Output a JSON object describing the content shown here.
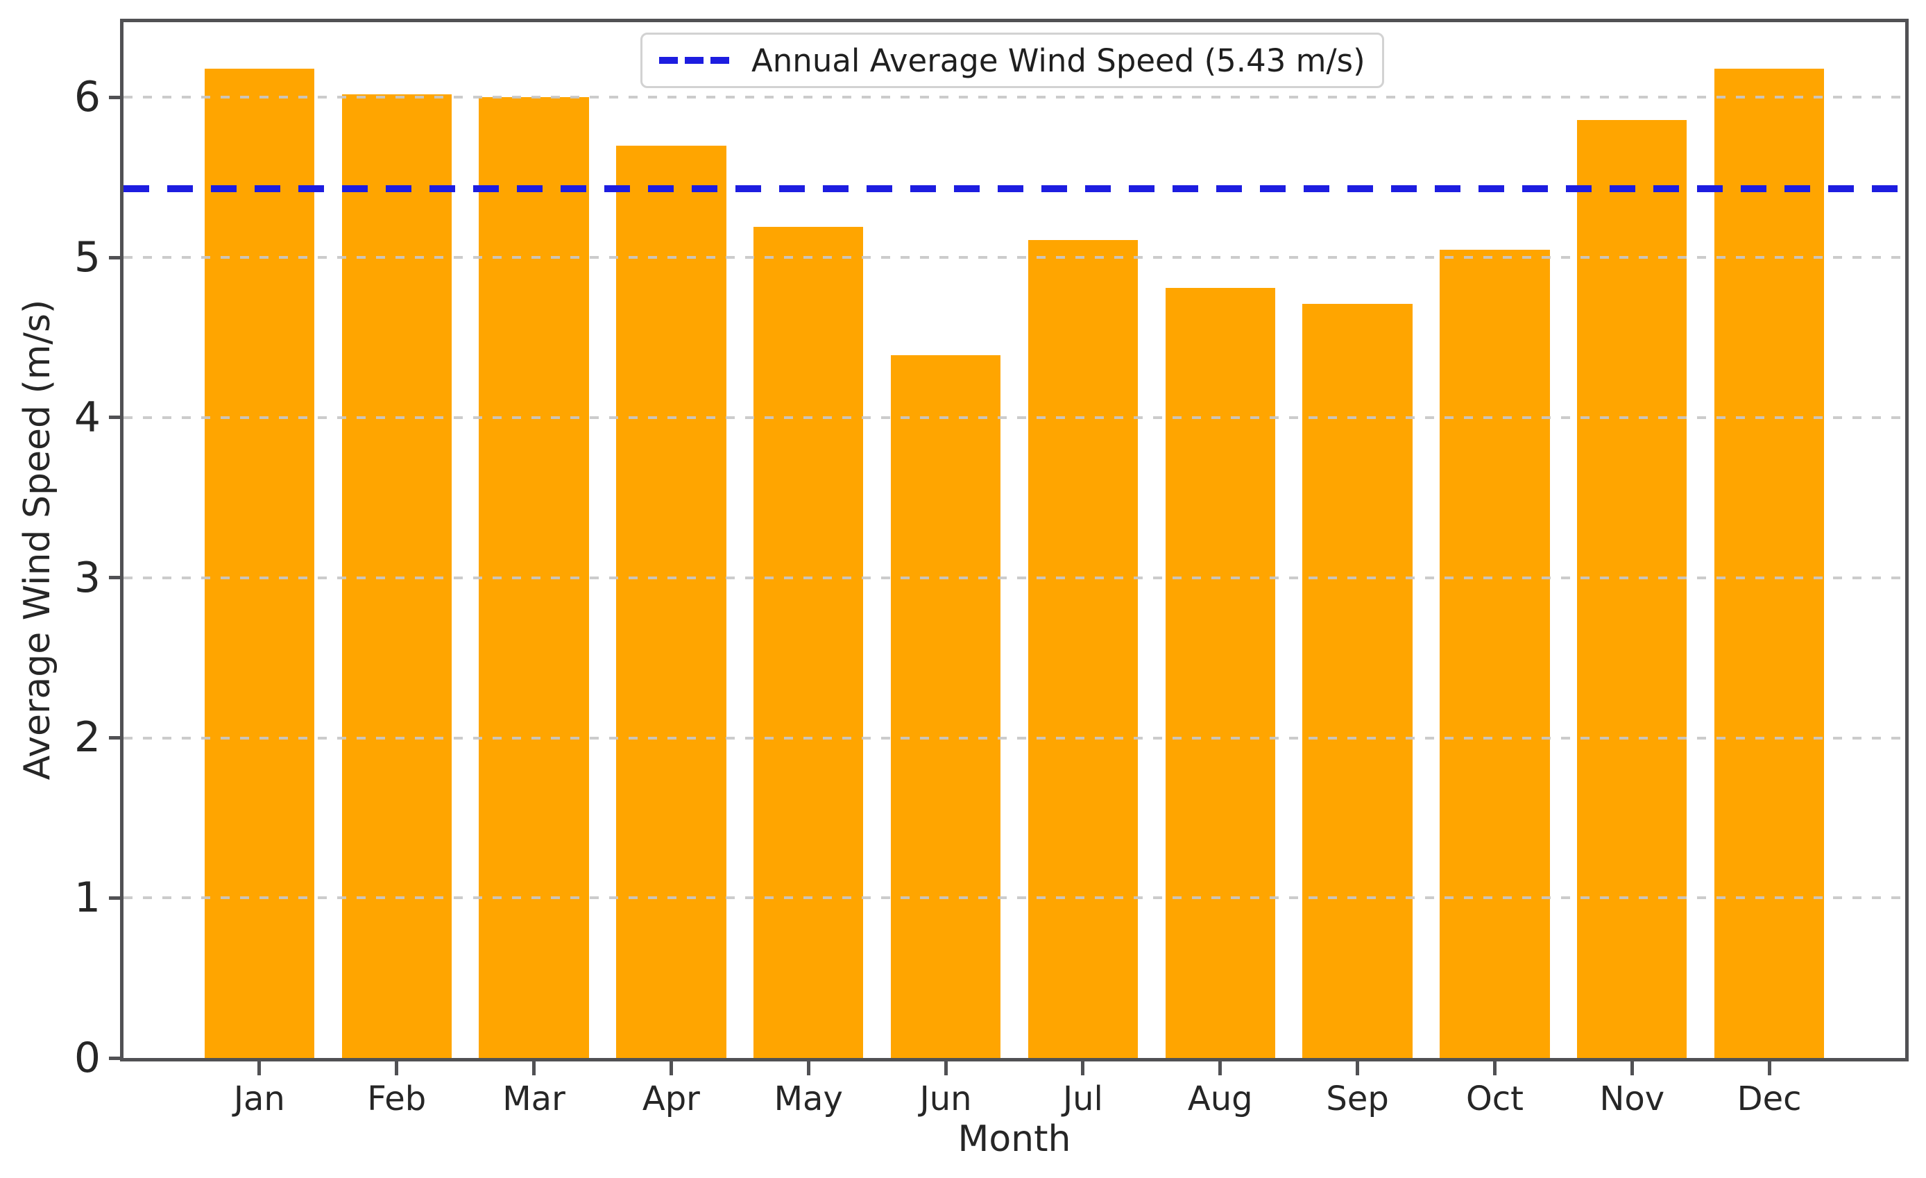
{
  "chart_data": {
    "type": "bar",
    "title": "",
    "categories": [
      "Jan",
      "Feb",
      "Mar",
      "Apr",
      "May",
      "Jun",
      "Jul",
      "Aug",
      "Sep",
      "Oct",
      "Nov",
      "Dec"
    ],
    "values": [
      6.18,
      6.02,
      6.0,
      5.7,
      5.19,
      4.39,
      5.11,
      4.81,
      4.71,
      5.05,
      5.86,
      6.18
    ],
    "xlabel": "Month",
    "ylabel": "Average Wind Speed (m/s)",
    "yticks": [
      0,
      1,
      2,
      3,
      4,
      5,
      6
    ],
    "ylim": [
      0,
      6.47
    ],
    "grid": true,
    "gridline_color": "#c7c7c7",
    "bar_color": "#FFA500",
    "average_line": {
      "value": 5.43,
      "label": "Annual Average Wind Speed (5.43 m/s)",
      "color": "#1d1de0",
      "style": "dashed"
    },
    "legend_position": "upper center"
  }
}
